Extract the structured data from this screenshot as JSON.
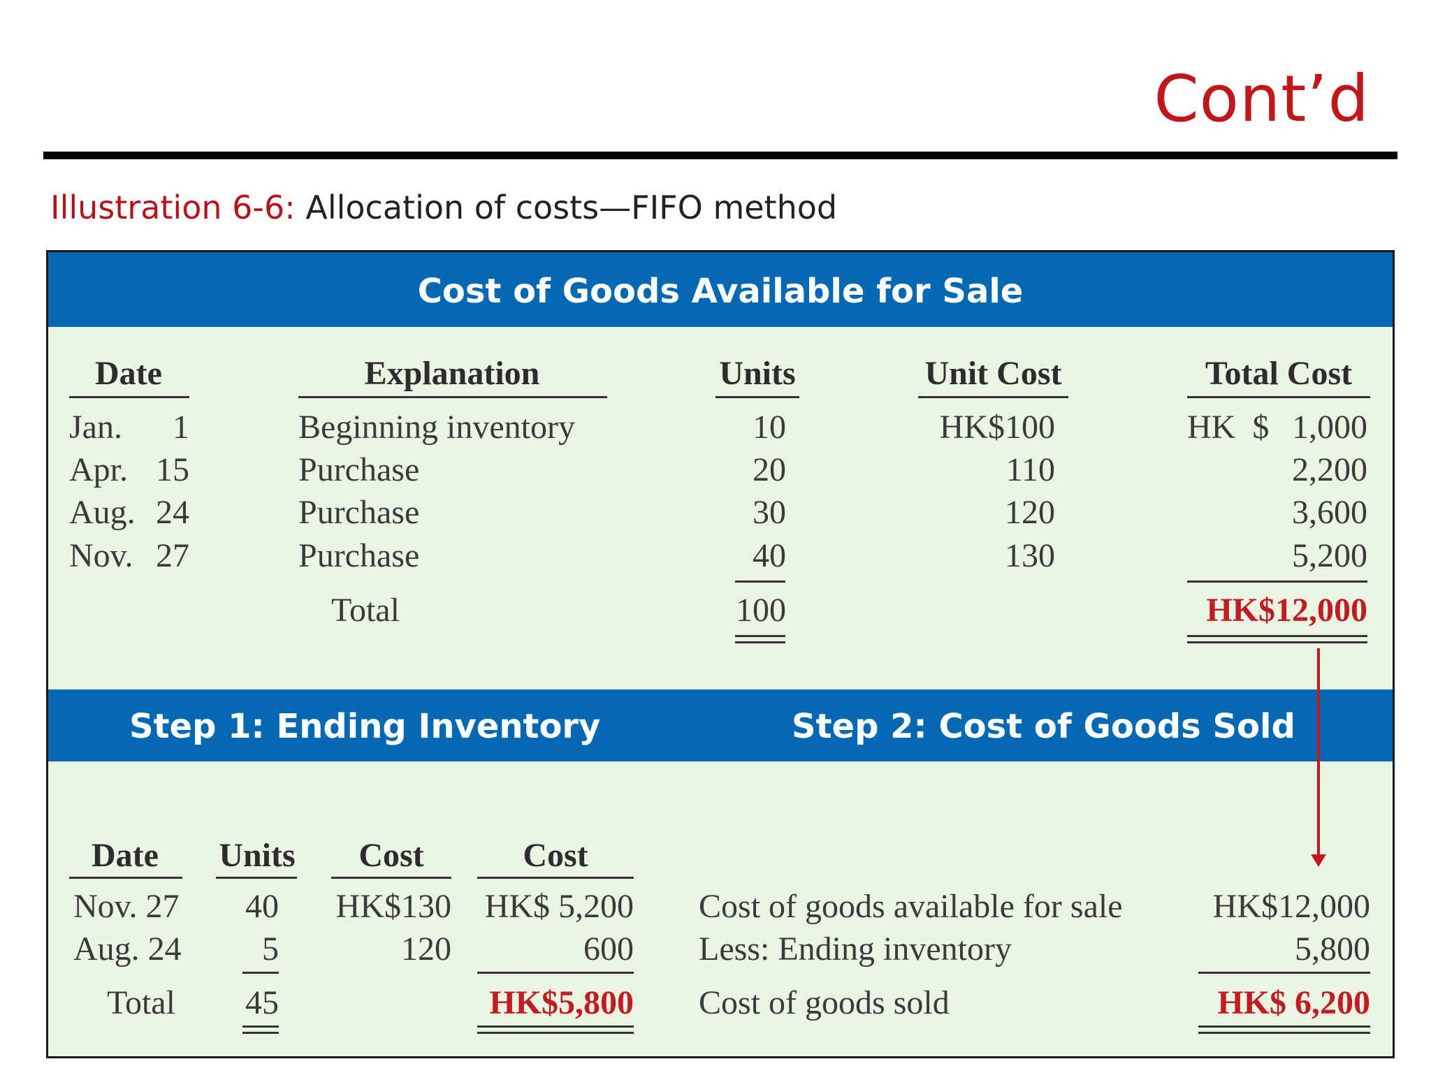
{
  "slide": {
    "contd": "Cont’d",
    "illustration_label": "Illustration 6-6:",
    "illustration_title": "Allocation of costs—FIFO method"
  },
  "top_table": {
    "band_title": "Cost of Goods Available for Sale",
    "headers": {
      "date": "Date",
      "explanation": "Explanation",
      "units": "Units",
      "unit_cost": "Unit Cost",
      "total_cost": "Total Cost"
    },
    "rows": [
      {
        "month": "Jan.",
        "day": "1",
        "explanation": "Beginning inventory",
        "units": "10",
        "unit_cost": "HK$100",
        "total_cost_prefix": "HK  $",
        "total_cost": "1,000"
      },
      {
        "month": "Apr.",
        "day": "15",
        "explanation": "Purchase",
        "units": "20",
        "unit_cost": "110",
        "total_cost_prefix": "",
        "total_cost": "2,200"
      },
      {
        "month": "Aug.",
        "day": "24",
        "explanation": "Purchase",
        "units": "30",
        "unit_cost": "120",
        "total_cost_prefix": "",
        "total_cost": "3,600"
      },
      {
        "month": "Nov.",
        "day": "27",
        "explanation": "Purchase",
        "units": "40",
        "unit_cost": "130",
        "total_cost_prefix": "",
        "total_cost": "5,200"
      }
    ],
    "total_label": "Total",
    "total_units": "100",
    "total_cost": "HK$12,000"
  },
  "step1": {
    "title": "Step 1: Ending Inventory",
    "headers": {
      "date": "Date",
      "units": "Units",
      "cost": "Cost",
      "total": "Cost"
    },
    "rows": [
      {
        "date": "Nov. 27",
        "units": "40",
        "cost": "HK$130",
        "total": "HK$ 5,200"
      },
      {
        "date": "Aug. 24",
        "units": "5",
        "cost": "120",
        "total": "600"
      }
    ],
    "total_label": "Total",
    "total_units": "45",
    "total_value": "HK$5,800"
  },
  "step2": {
    "title": "Step 2: Cost of Goods Sold",
    "lines": [
      {
        "label": "Cost of goods available for sale",
        "value": "HK$12,000"
      },
      {
        "label": "Less: Ending inventory",
        "value": "5,800"
      }
    ],
    "result_label": "Cost of goods sold",
    "result_value": "HK$ 6,200"
  },
  "colors": {
    "accent_red": "#c21b24",
    "band_blue": "#0468b3",
    "panel_bg": "#eaf4e3"
  }
}
